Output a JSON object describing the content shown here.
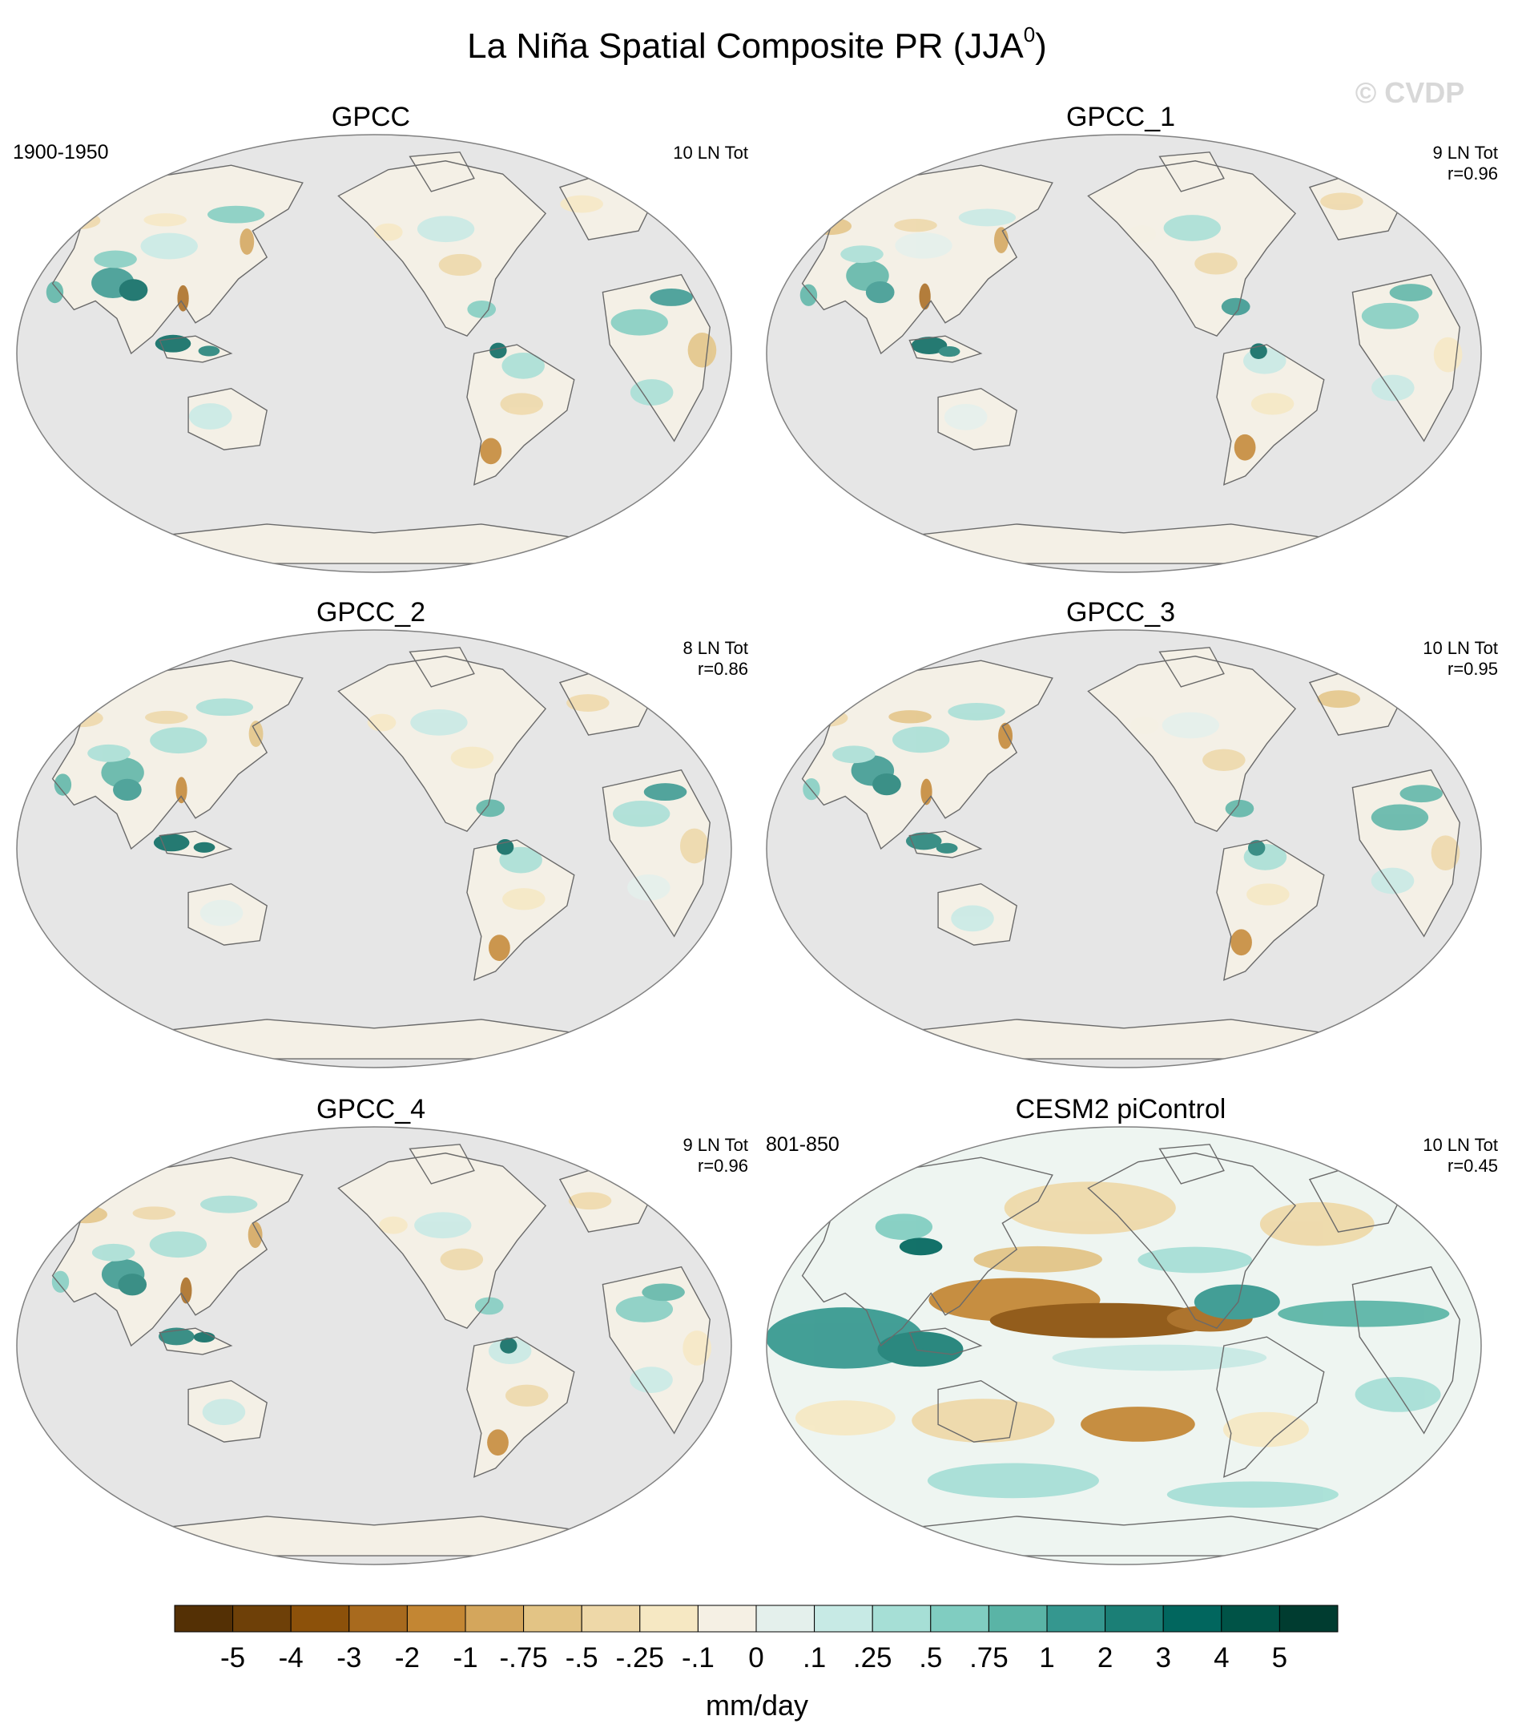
{
  "figure": {
    "title": "La Niña Spatial Composite PR (JJA",
    "title_sup": "0",
    "title_close": ")",
    "watermark": "© CVDP"
  },
  "panels": [
    {
      "id": "gpcc",
      "title": "GPCC",
      "period": "1900-1950",
      "events": "10 LN Tot",
      "r": "",
      "pattern": "obs",
      "seed": 3
    },
    {
      "id": "gpcc_1",
      "title": "GPCC_1",
      "period": "",
      "events": "9 LN Tot",
      "r": "r=0.96",
      "pattern": "obs",
      "seed": 7
    },
    {
      "id": "gpcc_2",
      "title": "GPCC_2",
      "period": "",
      "events": "8 LN Tot",
      "r": "r=0.86",
      "pattern": "obs",
      "seed": 11
    },
    {
      "id": "gpcc_3",
      "title": "GPCC_3",
      "period": "",
      "events": "10 LN Tot",
      "r": "r=0.95",
      "pattern": "obs",
      "seed": 17
    },
    {
      "id": "gpcc_4",
      "title": "GPCC_4",
      "period": "",
      "events": "9 LN Tot",
      "r": "r=0.96",
      "pattern": "obs",
      "seed": 23
    },
    {
      "id": "cesm2",
      "title": "CESM2 piControl",
      "period": "801-850",
      "events": "10 LN Tot",
      "r": "r=0.45",
      "pattern": "model",
      "seed": 29
    }
  ],
  "colorbar": {
    "label": "mm/day",
    "colors": [
      "#543005",
      "#6e4008",
      "#8c510a",
      "#a86a1e",
      "#c38633",
      "#d4a65c",
      "#e3c485",
      "#eed8a8",
      "#f6e8c3",
      "#f5f0e4",
      "#e4f0ec",
      "#c7eae5",
      "#a6dfd6",
      "#80cdc1",
      "#5ab4a6",
      "#35978f",
      "#1b7f76",
      "#01665e",
      "#005347",
      "#003c30"
    ],
    "ticks": [
      "-5",
      "-4",
      "-3",
      "-2",
      "-1",
      "-.75",
      "-.5",
      "-.25",
      "-.1",
      "0",
      ".1",
      ".25",
      ".5",
      ".75",
      "1",
      "2",
      "3",
      "4",
      "5"
    ]
  }
}
